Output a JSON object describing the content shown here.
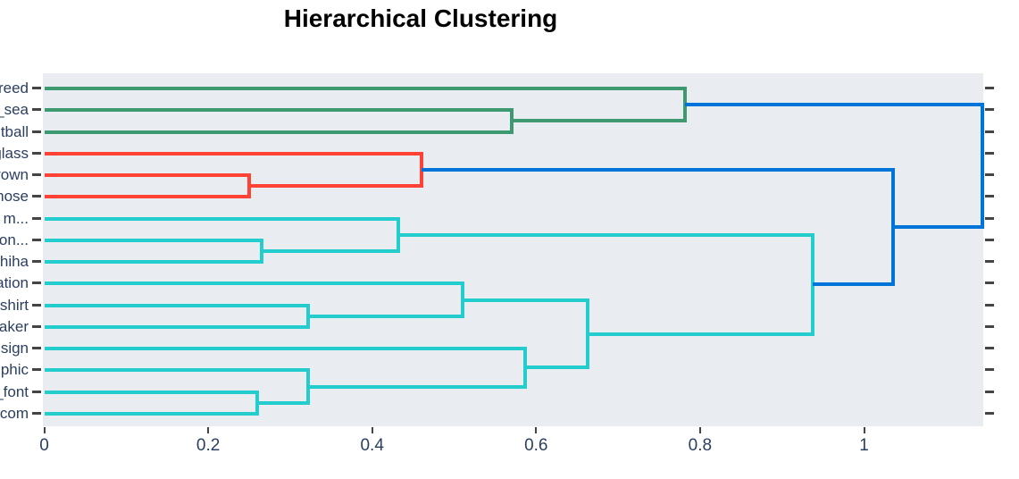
{
  "title": "Hierarchical Clustering",
  "style": {
    "plot_bg": "#e9edf1",
    "text_color": "#2a3f5f",
    "tick_color": "#444444",
    "title_color": "#000000"
  },
  "chart_data": {
    "type": "dendrogram",
    "orientation": "horizontal",
    "title": "Hierarchical Clustering",
    "x_axis": {
      "ticks": [
        0,
        0.2,
        0.4,
        0.6,
        0.8,
        1
      ],
      "range": [
        0,
        1.147
      ],
      "grid": false
    },
    "leaves": [
      "reed",
      "_sea",
      "tball",
      "glass",
      "rown",
      "nose",
      "m...",
      "on...",
      "hiha",
      "ation",
      "shirt",
      "aker",
      "sign",
      "phic",
      "_font",
      "com"
    ],
    "colors": {
      "green": "#3D9970",
      "red": "#FF4136",
      "cyan": "#23CDCD",
      "blue": "#0074D9"
    },
    "merges": [
      {
        "id": "A",
        "children": [
          "_sea",
          "tball"
        ],
        "height": 0.57,
        "color": "green"
      },
      {
        "id": "B",
        "children": [
          "reed",
          "A"
        ],
        "height": 0.782,
        "color": "green"
      },
      {
        "id": "C",
        "children": [
          "rown",
          "nose"
        ],
        "height": 0.25,
        "color": "red"
      },
      {
        "id": "D",
        "children": [
          "glass",
          "C"
        ],
        "height": 0.46,
        "color": "red"
      },
      {
        "id": "E",
        "children": [
          "on...",
          "hiha"
        ],
        "height": 0.265,
        "color": "cyan"
      },
      {
        "id": "F",
        "children": [
          "m...",
          "E"
        ],
        "height": 0.432,
        "color": "cyan"
      },
      {
        "id": "G",
        "children": [
          "shirt",
          "aker"
        ],
        "height": 0.322,
        "color": "cyan"
      },
      {
        "id": "H",
        "children": [
          "ation",
          "G"
        ],
        "height": 0.51,
        "color": "cyan"
      },
      {
        "id": "I",
        "children": [
          "_font",
          "com"
        ],
        "height": 0.26,
        "color": "cyan"
      },
      {
        "id": "J",
        "children": [
          "phic",
          "I"
        ],
        "height": 0.322,
        "color": "cyan"
      },
      {
        "id": "K",
        "children": [
          "sign",
          "J"
        ],
        "height": 0.587,
        "color": "cyan"
      },
      {
        "id": "L",
        "children": [
          "H",
          "K"
        ],
        "height": 0.663,
        "color": "cyan"
      },
      {
        "id": "M",
        "children": [
          "F",
          "L"
        ],
        "height": 0.937,
        "color": "cyan"
      },
      {
        "id": "N",
        "children": [
          "D",
          "M"
        ],
        "height": 1.035,
        "color": "blue"
      },
      {
        "id": "O",
        "children": [
          "B",
          "N"
        ],
        "height": 1.144,
        "color": "blue"
      }
    ]
  }
}
